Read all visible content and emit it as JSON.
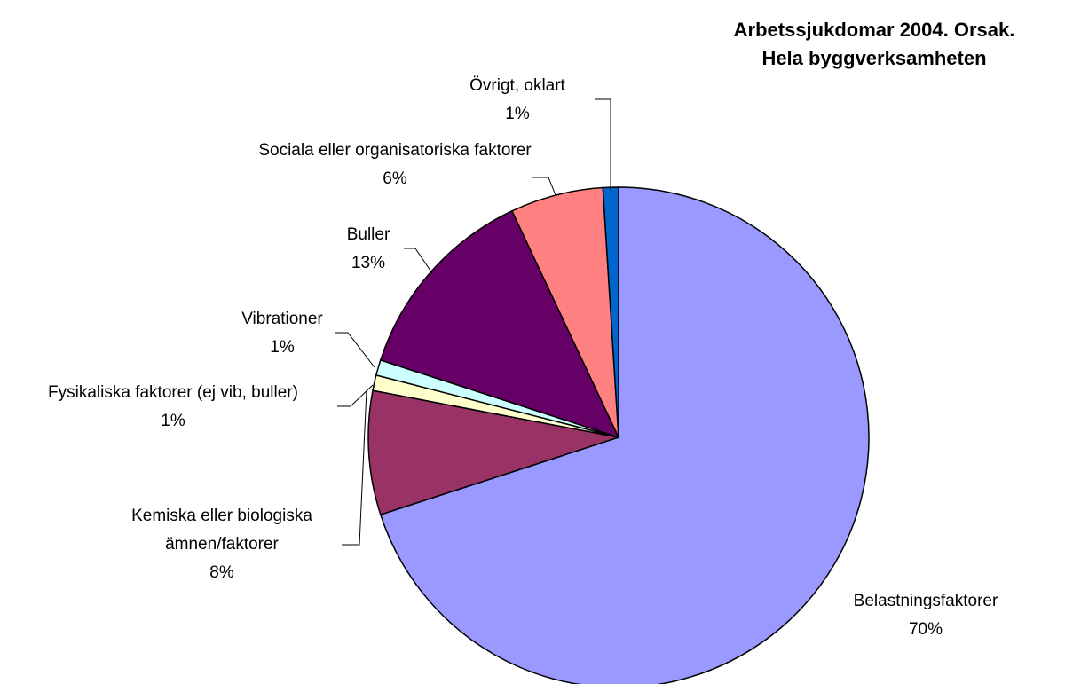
{
  "chart_data": {
    "type": "pie",
    "title": "Arbetssjukdomar 2004. Orsak. Hela byggverksamheten",
    "categories": [
      "Belastningsfaktorer",
      "Kemiska eller biologiska ämnen/faktorer",
      "Fysikaliska faktorer (ej vib, buller)",
      "Vibrationer",
      "Buller",
      "Sociala eller organisatoriska faktorer",
      "Övrigt, oklart"
    ],
    "values": [
      70,
      8,
      1,
      1,
      13,
      6,
      1
    ],
    "value_labels": [
      "70%",
      "8%",
      "1%",
      "1%",
      "13%",
      "6%",
      "1%"
    ],
    "colors": [
      "#9999ff",
      "#993366",
      "#ffffcc",
      "#ccffff",
      "#660066",
      "#ff8080",
      "#0066cc"
    ]
  }
}
